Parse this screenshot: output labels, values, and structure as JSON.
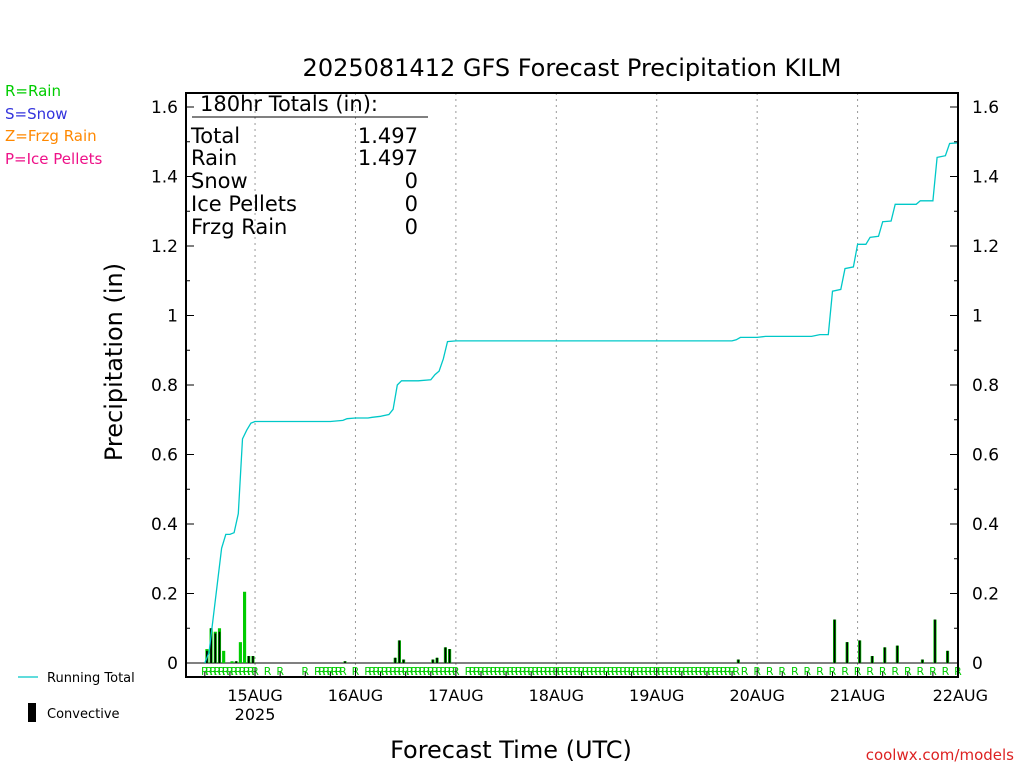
{
  "chart_data": {
    "type": "line",
    "title": "2025081412 GFS Forecast Precipitation KILM",
    "xlabel": "Forecast Time (UTC)",
    "ylabel": "Precipitation (in)",
    "ylim": [
      0,
      1.65
    ],
    "y_ticks": [
      "0",
      "0.2",
      "0.4",
      "0.6",
      "0.8",
      "1",
      "1.2",
      "1.4",
      "1.6"
    ],
    "y_tick_values": [
      0,
      0.2,
      0.4,
      0.6,
      0.8,
      1.0,
      1.2,
      1.4,
      1.6
    ],
    "xlim_hours": [
      -4.5,
      180
    ],
    "x_ticks": [
      {
        "hour": 12,
        "label": "15AUG",
        "sublabel": "2025"
      },
      {
        "hour": 36,
        "label": "16AUG"
      },
      {
        "hour": 60,
        "label": "17AUG"
      },
      {
        "hour": 84,
        "label": "18AUG"
      },
      {
        "hour": 108,
        "label": "19AUG"
      },
      {
        "hour": 132,
        "label": "20AUG"
      },
      {
        "hour": 156,
        "label": "21AUG"
      },
      {
        "hour": 180,
        "label": "22AUG"
      }
    ],
    "grid": "vertical dotted",
    "legend": {
      "types": [
        {
          "text": "R=Rain",
          "color": "#00cc00"
        },
        {
          "text": "S=Snow",
          "color": "#3333dd"
        },
        {
          "text": "Z=Frzg Rain",
          "color": "#ff8800"
        },
        {
          "text": "P=Ice Pellets",
          "color": "#ee1188"
        }
      ],
      "running_total": "Running Total",
      "convective": "Convective"
    },
    "totals_box": {
      "heading": "180hr Totals (in):",
      "rows": [
        {
          "label": "Total",
          "value": "1.497"
        },
        {
          "label": "Rain",
          "value": "1.497"
        },
        {
          "label": "Snow",
          "value": "0"
        },
        {
          "label": "Ice Pellets",
          "value": "0"
        },
        {
          "label": "Frzg Rain",
          "value": "0"
        }
      ]
    },
    "series": [
      {
        "name": "Running Total",
        "color": "#00c8c8",
        "points": [
          [
            0,
            0
          ],
          [
            1,
            0.03
          ],
          [
            2,
            0.13
          ],
          [
            3,
            0.23
          ],
          [
            4,
            0.33
          ],
          [
            5,
            0.37
          ],
          [
            6,
            0.37
          ],
          [
            7,
            0.375
          ],
          [
            8,
            0.43
          ],
          [
            9,
            0.645
          ],
          [
            10,
            0.67
          ],
          [
            11,
            0.69
          ],
          [
            12,
            0.695
          ],
          [
            15,
            0.695
          ],
          [
            18,
            0.695
          ],
          [
            21,
            0.695
          ],
          [
            24,
            0.695
          ],
          [
            27,
            0.695
          ],
          [
            30,
            0.695
          ],
          [
            33,
            0.698
          ],
          [
            34,
            0.703
          ],
          [
            36,
            0.705
          ],
          [
            39,
            0.705
          ],
          [
            40,
            0.707
          ],
          [
            42,
            0.71
          ],
          [
            44,
            0.715
          ],
          [
            45,
            0.73
          ],
          [
            46,
            0.8
          ],
          [
            47,
            0.812
          ],
          [
            48,
            0.812
          ],
          [
            51,
            0.812
          ],
          [
            54,
            0.815
          ],
          [
            55,
            0.83
          ],
          [
            56,
            0.84
          ],
          [
            57,
            0.875
          ],
          [
            58,
            0.925
          ],
          [
            60,
            0.927
          ],
          [
            63,
            0.927
          ],
          [
            72,
            0.927
          ],
          [
            84,
            0.927
          ],
          [
            96,
            0.927
          ],
          [
            108,
            0.927
          ],
          [
            120,
            0.927
          ],
          [
            126,
            0.927
          ],
          [
            127,
            0.93
          ],
          [
            128,
            0.937
          ],
          [
            130,
            0.937
          ],
          [
            132,
            0.937
          ],
          [
            134,
            0.94
          ],
          [
            140,
            0.94
          ],
          [
            145,
            0.94
          ],
          [
            147,
            0.945
          ],
          [
            149,
            0.945
          ],
          [
            150,
            1.07
          ],
          [
            152,
            1.075
          ],
          [
            153,
            1.135
          ],
          [
            155,
            1.14
          ],
          [
            156,
            1.205
          ],
          [
            158,
            1.205
          ],
          [
            159,
            1.225
          ],
          [
            161,
            1.228
          ],
          [
            162,
            1.27
          ],
          [
            164,
            1.272
          ],
          [
            165,
            1.32
          ],
          [
            167,
            1.32
          ],
          [
            170,
            1.32
          ],
          [
            171,
            1.33
          ],
          [
            174,
            1.33
          ],
          [
            175,
            1.455
          ],
          [
            177,
            1.46
          ],
          [
            178,
            1.495
          ],
          [
            180,
            1.497
          ]
        ]
      },
      {
        "name": "Rain",
        "color": "#00cc00",
        "bars": [
          [
            0.5,
            0.04
          ],
          [
            1.5,
            0.1
          ],
          [
            2.5,
            0.09
          ],
          [
            3.5,
            0.1
          ],
          [
            4.5,
            0.035
          ],
          [
            6.5,
            0.005
          ],
          [
            7.5,
            0.005
          ],
          [
            8.5,
            0.06
          ],
          [
            9.5,
            0.205
          ],
          [
            10.5,
            0.02
          ],
          [
            11.5,
            0.02
          ],
          [
            33.5,
            0.005
          ],
          [
            45.5,
            0.015
          ],
          [
            46.5,
            0.065
          ],
          [
            47.5,
            0.01
          ],
          [
            54.5,
            0.01
          ],
          [
            55.5,
            0.015
          ],
          [
            57.5,
            0.045
          ],
          [
            58.5,
            0.04
          ],
          [
            127.5,
            0.01
          ],
          [
            150.5,
            0.125
          ],
          [
            153.5,
            0.06
          ],
          [
            156.5,
            0.065
          ],
          [
            159.5,
            0.02
          ],
          [
            162.5,
            0.045
          ],
          [
            165.5,
            0.05
          ],
          [
            171.5,
            0.01
          ],
          [
            174.5,
            0.125
          ],
          [
            177.5,
            0.035
          ]
        ]
      },
      {
        "name": "Convective",
        "color": "#000000",
        "bars": [
          [
            0.5,
            0.035
          ],
          [
            1.5,
            0.1
          ],
          [
            2.5,
            0.085
          ],
          [
            3.5,
            0.09
          ],
          [
            7.5,
            0.005
          ],
          [
            10.5,
            0.02
          ],
          [
            11.5,
            0.02
          ],
          [
            33.5,
            0.005
          ],
          [
            45.5,
            0.015
          ],
          [
            46.5,
            0.065
          ],
          [
            47.5,
            0.01
          ],
          [
            54.5,
            0.01
          ],
          [
            55.5,
            0.015
          ],
          [
            57.5,
            0.045
          ],
          [
            58.5,
            0.04
          ],
          [
            127.5,
            0.01
          ],
          [
            150.5,
            0.125
          ],
          [
            153.5,
            0.06
          ],
          [
            156.5,
            0.065
          ],
          [
            159.5,
            0.02
          ],
          [
            162.5,
            0.045
          ],
          [
            165.5,
            0.05
          ],
          [
            171.5,
            0.01
          ],
          [
            174.5,
            0.125
          ],
          [
            177.5,
            0.035
          ]
        ]
      }
    ],
    "type_marker": {
      "text": "R",
      "color": "#00cc00"
    },
    "type_marker_hours": [
      0,
      1,
      2,
      3,
      4,
      5,
      6,
      7,
      8,
      9,
      10,
      11,
      12,
      15,
      18,
      24,
      27,
      28,
      29,
      30,
      31,
      32,
      33,
      36,
      39,
      40,
      41,
      42,
      43,
      44,
      45,
      46,
      47,
      48,
      49,
      50,
      51,
      52,
      53,
      54,
      55,
      56,
      57,
      58,
      59,
      60,
      63,
      64,
      65,
      66,
      67,
      68,
      69,
      70,
      71,
      72,
      73,
      74,
      75,
      76,
      77,
      78,
      79,
      80,
      81,
      82,
      83,
      84,
      85,
      86,
      87,
      88,
      89,
      90,
      91,
      92,
      93,
      94,
      95,
      96,
      97,
      98,
      99,
      100,
      101,
      102,
      103,
      104,
      105,
      106,
      107,
      108,
      109,
      110,
      111,
      112,
      113,
      114,
      115,
      116,
      117,
      118,
      119,
      120,
      121,
      122,
      123,
      124,
      125,
      126,
      127,
      129,
      132,
      135,
      138,
      141,
      144,
      147,
      150,
      153,
      156,
      159,
      162,
      165,
      168,
      171,
      174,
      177,
      180
    ],
    "attribution": "coolwx.com/models"
  }
}
